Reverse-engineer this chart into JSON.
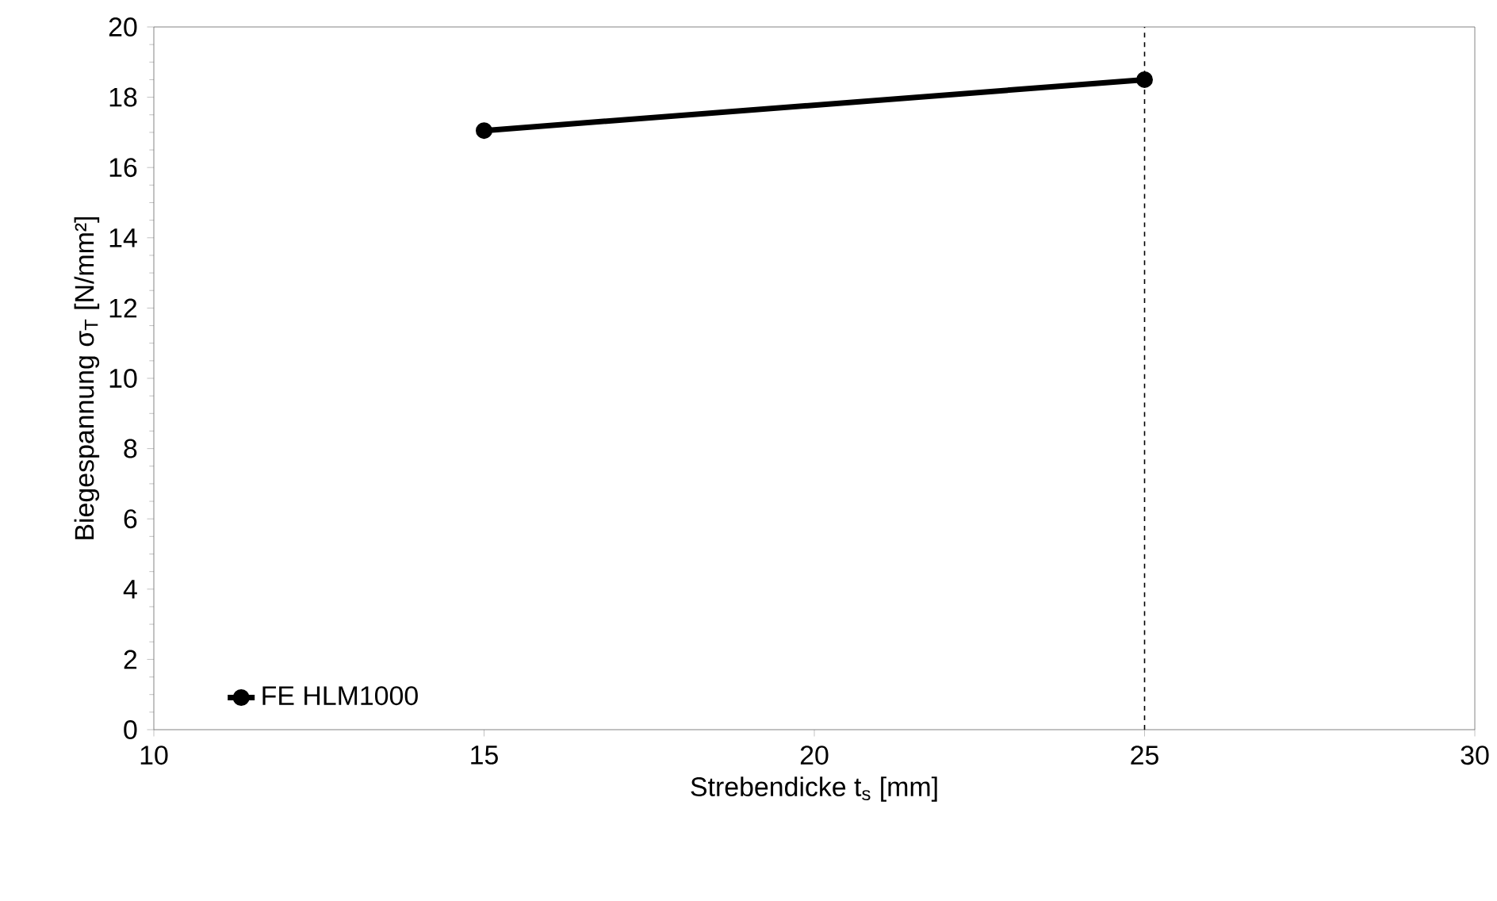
{
  "chart_data": {
    "type": "line",
    "xlabel": "Strebendicke t$_{s}$ [mm]",
    "ylabel": "Biegespannung σ$_{T}$ [N/mm²]",
    "x": [
      15,
      25
    ],
    "series": [
      {
        "name": "FE HLM1000",
        "color": "#000000",
        "values": [
          17.05,
          18.5
        ]
      }
    ],
    "xlim": [
      10,
      30
    ],
    "xticks": [
      10,
      15,
      20,
      25,
      30
    ],
    "ylim": [
      0,
      20
    ],
    "yticks": [
      0,
      2,
      4,
      6,
      8,
      10,
      12,
      14,
      16,
      18,
      20
    ],
    "ref_lines": [
      {
        "axis": "x",
        "value": 25,
        "line_style": "dashed",
        "color": "#000000"
      }
    ],
    "legend": "bottom left",
    "marker": "circle",
    "line_style": "solid",
    "grid": false
  }
}
